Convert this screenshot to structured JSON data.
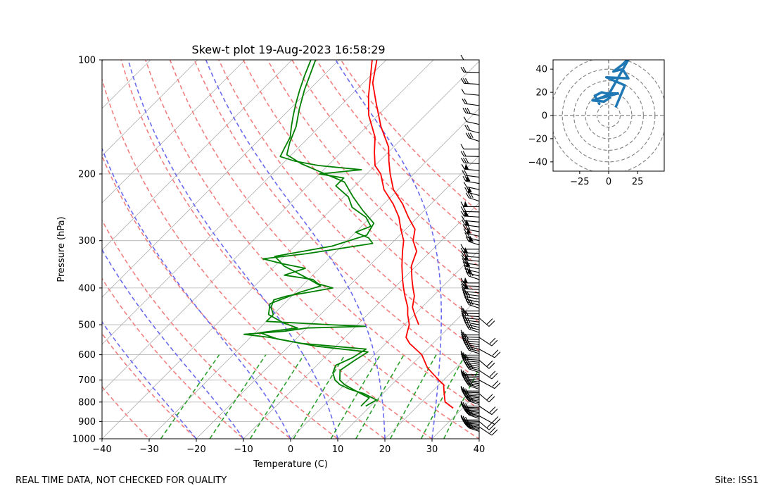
{
  "footer": {
    "left": "REAL TIME DATA, NOT CHECKED FOR QUALITY",
    "right": "Site: ISS1"
  },
  "colors": {
    "temperature": "#ff0000",
    "dewpoint": "#008000",
    "dry_adiabat": "#f08080",
    "moist_adiabat": "#6a6aee",
    "mixing_ratio": "#2ca02c",
    "isotherm": "#b0b0b0",
    "isobar": "#b0b0b0",
    "hodograph": "#1f77b4",
    "hodo_ring": "#808080",
    "barb": "#000000"
  },
  "chart_data": [
    {
      "type": "line",
      "name": "skew-t",
      "title": "Skew-t plot 19-Aug-2023 16:58:29",
      "xlabel": "Temperature (C)",
      "ylabel": "Pressure (hPa)",
      "xlim": [
        -40,
        40
      ],
      "ylim": [
        1000,
        100
      ],
      "y_scale": "log",
      "x_ticks": [
        "−40",
        "−30",
        "−20",
        "−10",
        "0",
        "10",
        "20",
        "30",
        "40"
      ],
      "y_ticks": [
        "100",
        "200",
        "300",
        "400",
        "500",
        "600",
        "700",
        "800",
        "900",
        "1000"
      ],
      "series": [
        {
          "name": "temperature",
          "points": [
            [
              830,
              28
            ],
            [
              820,
              27
            ],
            [
              800,
              25
            ],
            [
              780,
              24
            ],
            [
              750,
              22.5
            ],
            [
              720,
              21
            ],
            [
              700,
              19
            ],
            [
              650,
              14
            ],
            [
              600,
              10
            ],
            [
              560,
              5
            ],
            [
              540,
              3
            ],
            [
              520,
              2
            ],
            [
              500,
              1
            ],
            [
              470,
              -1.5
            ],
            [
              450,
              -3
            ],
            [
              420,
              -6
            ],
            [
              400,
              -8
            ],
            [
              380,
              -10
            ],
            [
              350,
              -13
            ],
            [
              320,
              -16
            ],
            [
              300,
              -18
            ],
            [
              280,
              -21
            ],
            [
              260,
              -24
            ],
            [
              240,
              -28
            ],
            [
              220,
              -33
            ],
            [
              200,
              -37
            ],
            [
              190,
              -40
            ],
            [
              175,
              -43
            ],
            [
              160,
              -46
            ],
            [
              140,
              -52
            ],
            [
              125,
              -56
            ],
            [
              110,
              -60
            ],
            [
              100,
              -63
            ]
          ]
        },
        {
          "name": "temperature-2",
          "points": [
            [
              500,
              3
            ],
            [
              470,
              0
            ],
            [
              450,
              -2
            ],
            [
              420,
              -4
            ],
            [
              400,
              -6
            ],
            [
              380,
              -8
            ],
            [
              350,
              -11
            ],
            [
              320,
              -13
            ],
            [
              300,
              -16
            ],
            [
              280,
              -18
            ],
            [
              260,
              -22
            ],
            [
              240,
              -26
            ],
            [
              220,
              -31
            ],
            [
              200,
              -35
            ],
            [
              185,
              -38
            ],
            [
              170,
              -41
            ],
            [
              150,
              -47
            ],
            [
              130,
              -53
            ],
            [
              115,
              -58
            ],
            [
              100,
              -62
            ]
          ]
        },
        {
          "name": "dewpoint",
          "points": [
            [
              820,
              9
            ],
            [
              790,
              10
            ],
            [
              760,
              6
            ],
            [
              740,
              2
            ],
            [
              720,
              -1
            ],
            [
              700,
              -3
            ],
            [
              670,
              -5
            ],
            [
              640,
              -6
            ],
            [
              610,
              -4
            ],
            [
              580,
              -3
            ],
            [
              560,
              -18
            ],
            [
              540,
              -26
            ],
            [
              530,
              -32
            ],
            [
              520,
              -24
            ],
            [
              510,
              -20
            ],
            [
              505,
              -8
            ],
            [
              500,
              -16
            ],
            [
              490,
              -30
            ],
            [
              470,
              -30
            ],
            [
              450,
              -32
            ],
            [
              430,
              -33
            ],
            [
              420,
              -31
            ],
            [
              410,
              -27
            ],
            [
              400,
              -23
            ],
            [
              390,
              -27
            ],
            [
              380,
              -29
            ],
            [
              370,
              -36
            ],
            [
              355,
              -33
            ],
            [
              345,
              -39
            ],
            [
              335,
              -44
            ],
            [
              325,
              -36
            ],
            [
              315,
              -30
            ],
            [
              305,
              -24
            ],
            [
              295,
              -26
            ],
            [
              285,
              -30
            ],
            [
              275,
              -28
            ],
            [
              260,
              -31
            ],
            [
              245,
              -36
            ],
            [
              230,
              -39
            ],
            [
              215,
              -44
            ],
            [
              205,
              -44
            ],
            [
              200,
              -50
            ],
            [
              195,
              -42
            ],
            [
              190,
              -52
            ],
            [
              185,
              -58
            ],
            [
              180,
              -62
            ],
            [
              170,
              -63
            ],
            [
              160,
              -64
            ],
            [
              150,
              -66
            ],
            [
              140,
              -68
            ],
            [
              130,
              -70
            ],
            [
              120,
              -72
            ],
            [
              110,
              -74
            ],
            [
              100,
              -76
            ]
          ]
        },
        {
          "name": "dewpoint-2",
          "points": [
            [
              820,
              8
            ],
            [
              780,
              8
            ],
            [
              750,
              4
            ],
            [
              720,
              0
            ],
            [
              700,
              -2
            ],
            [
              660,
              -4
            ],
            [
              620,
              -3
            ],
            [
              590,
              -2
            ],
            [
              570,
              -14
            ],
            [
              545,
              -24
            ],
            [
              525,
              -29
            ],
            [
              510,
              -22
            ],
            [
              495,
              -26
            ],
            [
              470,
              -31
            ],
            [
              440,
              -33
            ],
            [
              410,
              -29
            ],
            [
              395,
              -26
            ],
            [
              375,
              -31
            ],
            [
              350,
              -38
            ],
            [
              330,
              -42
            ],
            [
              310,
              -32
            ],
            [
              290,
              -27
            ],
            [
              270,
              -28
            ],
            [
              250,
              -33
            ],
            [
              230,
              -38
            ],
            [
              210,
              -43
            ],
            [
              198,
              -50
            ],
            [
              188,
              -56
            ],
            [
              178,
              -61
            ],
            [
              165,
              -63
            ],
            [
              150,
              -65
            ],
            [
              135,
              -68
            ],
            [
              120,
              -71
            ],
            [
              100,
              -75
            ]
          ]
        }
      ]
    },
    {
      "type": "line",
      "name": "hodograph",
      "xlim": [
        -48,
        48
      ],
      "ylim": [
        -48,
        48
      ],
      "x_ticks": [
        "−25",
        "0",
        "25"
      ],
      "y_ticks": [
        "40",
        "20",
        "0",
        "−20",
        "−40"
      ],
      "series": [
        {
          "name": "wind-uv",
          "points": [
            [
              6,
              7
            ],
            [
              14,
              26
            ],
            [
              -2,
              33
            ],
            [
              17,
              32
            ],
            [
              12,
              40
            ],
            [
              4,
              38
            ],
            [
              12,
              44
            ],
            [
              18,
              50
            ],
            [
              0,
              18
            ],
            [
              -10,
              14
            ],
            [
              -8,
              10
            ],
            [
              -12,
              17
            ],
            [
              -6,
              20
            ],
            [
              -2,
              19
            ],
            [
              8,
              19
            ],
            [
              -14,
              13
            ],
            [
              -4,
              12
            ],
            [
              2,
              16
            ]
          ]
        }
      ]
    }
  ]
}
